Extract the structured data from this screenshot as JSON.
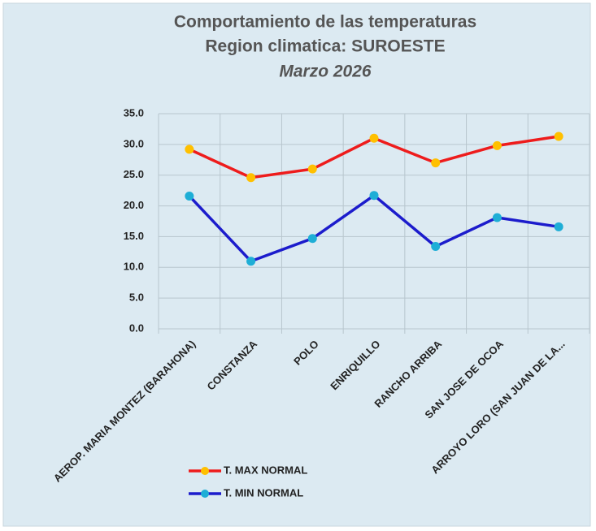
{
  "chart_data": {
    "type": "line",
    "title": "Comportamiento de las temperaturas",
    "subtitle": "Region climatica: SUROESTE",
    "period": "Marzo 2026",
    "categories": [
      "AEROP. MARIA MONTEZ (BARAHONA)",
      "CONSTANZA",
      "POLO",
      "ENRIQUILLO",
      "RANCHO ARRIBA",
      "SAN JOSE DE OCOA",
      "ARROYO LORO (SAN JUAN DE LA..."
    ],
    "series": [
      {
        "name": "T. MAX NORMAL",
        "color": "#ee1c1c",
        "marker_color": "#ffc000",
        "values": [
          29.2,
          24.6,
          26.0,
          31.0,
          27.0,
          29.8,
          31.3
        ]
      },
      {
        "name": "T. MIN NORMAL",
        "color": "#1c1ccc",
        "marker_color": "#1eaed6",
        "values": [
          21.6,
          11.0,
          14.7,
          21.7,
          13.4,
          18.1,
          16.6
        ]
      }
    ],
    "ylim": [
      0,
      35
    ],
    "yticks": [
      {
        "value": 0,
        "label": "0.0"
      },
      {
        "value": 5,
        "label": "5.0"
      },
      {
        "value": 10,
        "label": "10.0"
      },
      {
        "value": 15,
        "label": "15.0"
      },
      {
        "value": 20,
        "label": "20.0"
      },
      {
        "value": 25,
        "label": "25.0"
      },
      {
        "value": 30,
        "label": "30.0"
      },
      {
        "value": 35,
        "label": "35.0"
      }
    ],
    "grid": true,
    "legend": "bottom"
  }
}
